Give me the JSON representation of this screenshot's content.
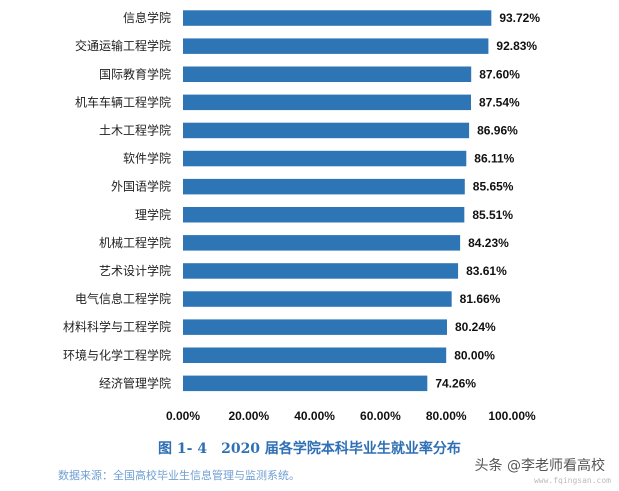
{
  "chart_data": {
    "type": "bar",
    "orientation": "horizontal",
    "categories": [
      "信息学院",
      "交通运输工程学院",
      "国际教育学院",
      "机车车辆工程学院",
      "土木工程学院",
      "软件学院",
      "外国语学院",
      "理学院",
      "机械工程学院",
      "艺术设计学院",
      "电气信息工程学院",
      "材料科学与工程学院",
      "环境与化学工程学院",
      "经济管理学院"
    ],
    "values": [
      93.72,
      92.83,
      87.6,
      87.54,
      86.96,
      86.11,
      85.65,
      85.51,
      84.23,
      83.61,
      81.66,
      80.24,
      80.0,
      74.26
    ],
    "value_labels": [
      "93.72%",
      "92.83%",
      "87.60%",
      "87.54%",
      "86.96%",
      "86.11%",
      "85.65%",
      "85.51%",
      "84.23%",
      "83.61%",
      "81.66%",
      "80.24%",
      "80.00%",
      "74.26%"
    ],
    "xlim": [
      0,
      100
    ],
    "xticks": [
      0,
      20,
      40,
      60,
      80,
      100
    ],
    "xtick_labels": [
      "0.00%",
      "20.00%",
      "40.00%",
      "60.00%",
      "80.00%",
      "100.00%"
    ],
    "bar_color": "#2e75b6",
    "grid": false,
    "title": "图 1- 4　2020 届各学院本科毕业生就业率分布"
  },
  "caption": "图 1- 4　2020 届各学院本科毕业生就业率分布",
  "source_note": "数据来源：全国高校毕业生信息管理与监测系统。",
  "watermark": "头条 @李老师看高校",
  "watermark_url": "www.fqingsan.com"
}
